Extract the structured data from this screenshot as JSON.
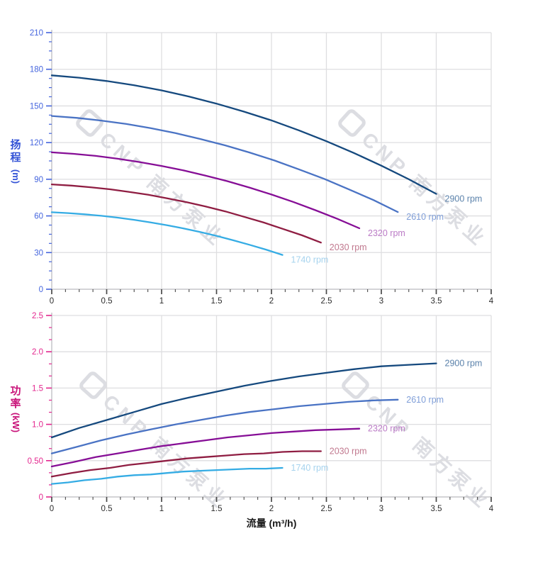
{
  "watermark": {
    "text": "CNP 南方泵业"
  },
  "xaxis": {
    "title": "流量 (m³/h)"
  },
  "chart_data": [
    {
      "type": "line",
      "id": "head-chart",
      "title": "",
      "ylabel": "扬程",
      "ylabel_unit": "(m)",
      "xlabel": "流量 (m³/h)",
      "x_range": [
        0,
        4
      ],
      "y_range": [
        0,
        210
      ],
      "x_ticks": [
        "0",
        "0.5",
        "1",
        "1.5",
        "2",
        "2.5",
        "3",
        "3.5",
        "4"
      ],
      "y_ticks": [
        "0",
        "30",
        "60",
        "90",
        "120",
        "150",
        "180",
        "210"
      ],
      "grid": true,
      "legend_position": "curve-ends",
      "axis_title_color": "#3353d6",
      "tick_label_color": "#4565de",
      "series": [
        {
          "name": "2900 rpm",
          "color": "#15497e",
          "label_color": "#5b82ab",
          "points": [
            [
              0,
              175
            ],
            [
              0.25,
              173.1
            ],
            [
              0.5,
              170.4
            ],
            [
              0.75,
              166.9
            ],
            [
              1,
              162.7
            ],
            [
              1.25,
              157.7
            ],
            [
              1.5,
              151.9
            ],
            [
              1.75,
              145.3
            ],
            [
              2,
              138.2
            ],
            [
              2.25,
              130
            ],
            [
              2.5,
              121.1
            ],
            [
              2.75,
              111.5
            ],
            [
              3,
              101.1
            ],
            [
              3.25,
              90
            ],
            [
              3.5,
              78
            ]
          ]
        },
        {
          "name": "2610 rpm",
          "color": "#4a73c4",
          "label_color": "#7f9ed8",
          "points": [
            [
              0,
              141.8
            ],
            [
              0.23,
              140.2
            ],
            [
              0.45,
              138
            ],
            [
              0.68,
              135.2
            ],
            [
              0.9,
              131.8
            ],
            [
              1.13,
              127.7
            ],
            [
              1.35,
              123
            ],
            [
              1.58,
              117.7
            ],
            [
              1.8,
              111.9
            ],
            [
              2.03,
              105.3
            ],
            [
              2.25,
              98.1
            ],
            [
              2.48,
              90.3
            ],
            [
              2.7,
              81.9
            ],
            [
              2.93,
              72.9
            ],
            [
              3.15,
              63.2
            ]
          ]
        },
        {
          "name": "2320 rpm",
          "color": "#860e96",
          "label_color": "#bb7bc6",
          "points": [
            [
              0,
              112
            ],
            [
              0.2,
              110.8
            ],
            [
              0.4,
              109.1
            ],
            [
              0.6,
              106.8
            ],
            [
              0.8,
              104.1
            ],
            [
              1,
              100.9
            ],
            [
              1.2,
              97.2
            ],
            [
              1.4,
              93
            ],
            [
              1.6,
              88.4
            ],
            [
              1.8,
              83.2
            ],
            [
              2,
              77.5
            ],
            [
              2.2,
              71.4
            ],
            [
              2.4,
              64.7
            ],
            [
              2.6,
              57.6
            ],
            [
              2.8,
              49.9
            ]
          ]
        },
        {
          "name": "2030 rpm",
          "color": "#8f1d42",
          "label_color": "#c1798f",
          "points": [
            [
              0,
              85.8
            ],
            [
              0.18,
              84.8
            ],
            [
              0.35,
              83.5
            ],
            [
              0.53,
              81.8
            ],
            [
              0.7,
              79.7
            ],
            [
              0.88,
              77.3
            ],
            [
              1.05,
              74.4
            ],
            [
              1.23,
              71.2
            ],
            [
              1.4,
              67.7
            ],
            [
              1.58,
              63.7
            ],
            [
              1.75,
              59.3
            ],
            [
              1.93,
              54.6
            ],
            [
              2.1,
              49.5
            ],
            [
              2.28,
              44.1
            ],
            [
              2.45,
              38.2
            ]
          ]
        },
        {
          "name": "1740 rpm",
          "color": "#35ace4",
          "label_color": "#a6d3ee",
          "points": [
            [
              0,
              63
            ],
            [
              0.15,
              62.3
            ],
            [
              0.3,
              61.3
            ],
            [
              0.45,
              60.1
            ],
            [
              0.6,
              58.6
            ],
            [
              0.75,
              56.8
            ],
            [
              0.9,
              54.7
            ],
            [
              1.05,
              52.3
            ],
            [
              1.2,
              49.8
            ],
            [
              1.35,
              46.8
            ],
            [
              1.5,
              43.6
            ],
            [
              1.65,
              40.1
            ],
            [
              1.8,
              36.4
            ],
            [
              1.95,
              32.4
            ],
            [
              2.1,
              28.1
            ]
          ]
        }
      ]
    },
    {
      "type": "line",
      "id": "power-chart",
      "title": "",
      "ylabel": "功率",
      "ylabel_unit": "(kW)",
      "xlabel": "流量 (m³/h)",
      "x_range": [
        0,
        4
      ],
      "y_range": [
        0,
        2.5
      ],
      "x_ticks": [
        "0",
        "0.5",
        "1",
        "1.5",
        "2",
        "2.5",
        "3",
        "3.5",
        "4"
      ],
      "y_ticks": [
        "0",
        "0.50",
        "1.0",
        "1.5",
        "2.0",
        "2.5"
      ],
      "grid": true,
      "legend_position": "curve-ends",
      "axis_title_color": "#c9147a",
      "tick_label_color": "#e3268e",
      "series": [
        {
          "name": "2900 rpm",
          "color": "#15497e",
          "label_color": "#5b82ab",
          "points": [
            [
              0,
              0.82
            ],
            [
              0.25,
              0.95
            ],
            [
              0.5,
              1.06
            ],
            [
              0.75,
              1.17
            ],
            [
              1,
              1.28
            ],
            [
              1.25,
              1.37
            ],
            [
              1.5,
              1.45
            ],
            [
              1.75,
              1.53
            ],
            [
              2,
              1.6
            ],
            [
              2.25,
              1.66
            ],
            [
              2.5,
              1.71
            ],
            [
              2.75,
              1.76
            ],
            [
              3,
              1.8
            ],
            [
              3.25,
              1.82
            ],
            [
              3.5,
              1.84
            ]
          ]
        },
        {
          "name": "2610 rpm",
          "color": "#4a73c4",
          "label_color": "#7f9ed8",
          "points": [
            [
              0,
              0.6
            ],
            [
              0.23,
              0.69
            ],
            [
              0.45,
              0.78
            ],
            [
              0.68,
              0.86
            ],
            [
              0.9,
              0.93
            ],
            [
              1.13,
              1
            ],
            [
              1.35,
              1.06
            ],
            [
              1.58,
              1.12
            ],
            [
              1.8,
              1.17
            ],
            [
              2.03,
              1.21
            ],
            [
              2.25,
              1.25
            ],
            [
              2.48,
              1.28
            ],
            [
              2.7,
              1.31
            ],
            [
              2.93,
              1.33
            ],
            [
              3.15,
              1.34
            ]
          ]
        },
        {
          "name": "2320 rpm",
          "color": "#860e96",
          "label_color": "#bb7bc6",
          "points": [
            [
              0,
              0.42
            ],
            [
              0.2,
              0.48
            ],
            [
              0.4,
              0.55
            ],
            [
              0.6,
              0.6
            ],
            [
              0.8,
              0.65
            ],
            [
              1,
              0.7
            ],
            [
              1.2,
              0.74
            ],
            [
              1.4,
              0.78
            ],
            [
              1.6,
              0.82
            ],
            [
              1.8,
              0.85
            ],
            [
              2,
              0.88
            ],
            [
              2.2,
              0.9
            ],
            [
              2.4,
              0.92
            ],
            [
              2.6,
              0.93
            ],
            [
              2.8,
              0.94
            ]
          ]
        },
        {
          "name": "2030 rpm",
          "color": "#8f1d42",
          "label_color": "#c1798f",
          "points": [
            [
              0,
              0.28
            ],
            [
              0.18,
              0.33
            ],
            [
              0.35,
              0.37
            ],
            [
              0.53,
              0.4
            ],
            [
              0.7,
              0.44
            ],
            [
              0.88,
              0.47
            ],
            [
              1.05,
              0.5
            ],
            [
              1.23,
              0.53
            ],
            [
              1.4,
              0.55
            ],
            [
              1.58,
              0.57
            ],
            [
              1.75,
              0.59
            ],
            [
              1.93,
              0.6
            ],
            [
              2.1,
              0.62
            ],
            [
              2.28,
              0.63
            ],
            [
              2.45,
              0.63
            ]
          ]
        },
        {
          "name": "1740 rpm",
          "color": "#35ace4",
          "label_color": "#a6d3ee",
          "points": [
            [
              0,
              0.18
            ],
            [
              0.15,
              0.2
            ],
            [
              0.3,
              0.23
            ],
            [
              0.45,
              0.25
            ],
            [
              0.6,
              0.28
            ],
            [
              0.75,
              0.3
            ],
            [
              0.9,
              0.31
            ],
            [
              1.05,
              0.33
            ],
            [
              1.2,
              0.35
            ],
            [
              1.35,
              0.36
            ],
            [
              1.5,
              0.37
            ],
            [
              1.65,
              0.38
            ],
            [
              1.8,
              0.39
            ],
            [
              1.95,
              0.39
            ],
            [
              2.1,
              0.4
            ]
          ]
        }
      ]
    }
  ]
}
